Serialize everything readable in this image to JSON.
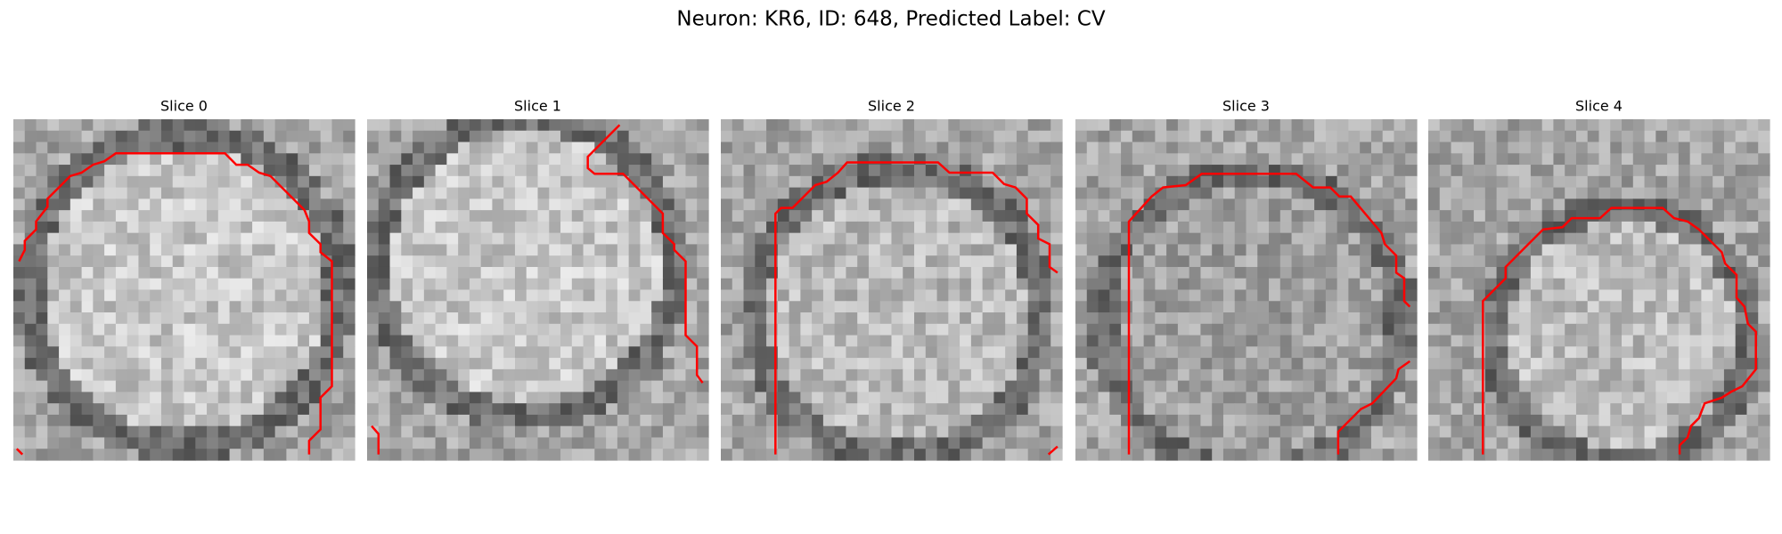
{
  "title": "Neuron: KR6, ID: 648, Predicted Label: CV",
  "panels": [
    {
      "title": "Slice 0"
    },
    {
      "title": "Slice 1"
    },
    {
      "title": "Slice 2"
    },
    {
      "title": "Slice 3"
    },
    {
      "title": "Slice 4"
    }
  ]
}
